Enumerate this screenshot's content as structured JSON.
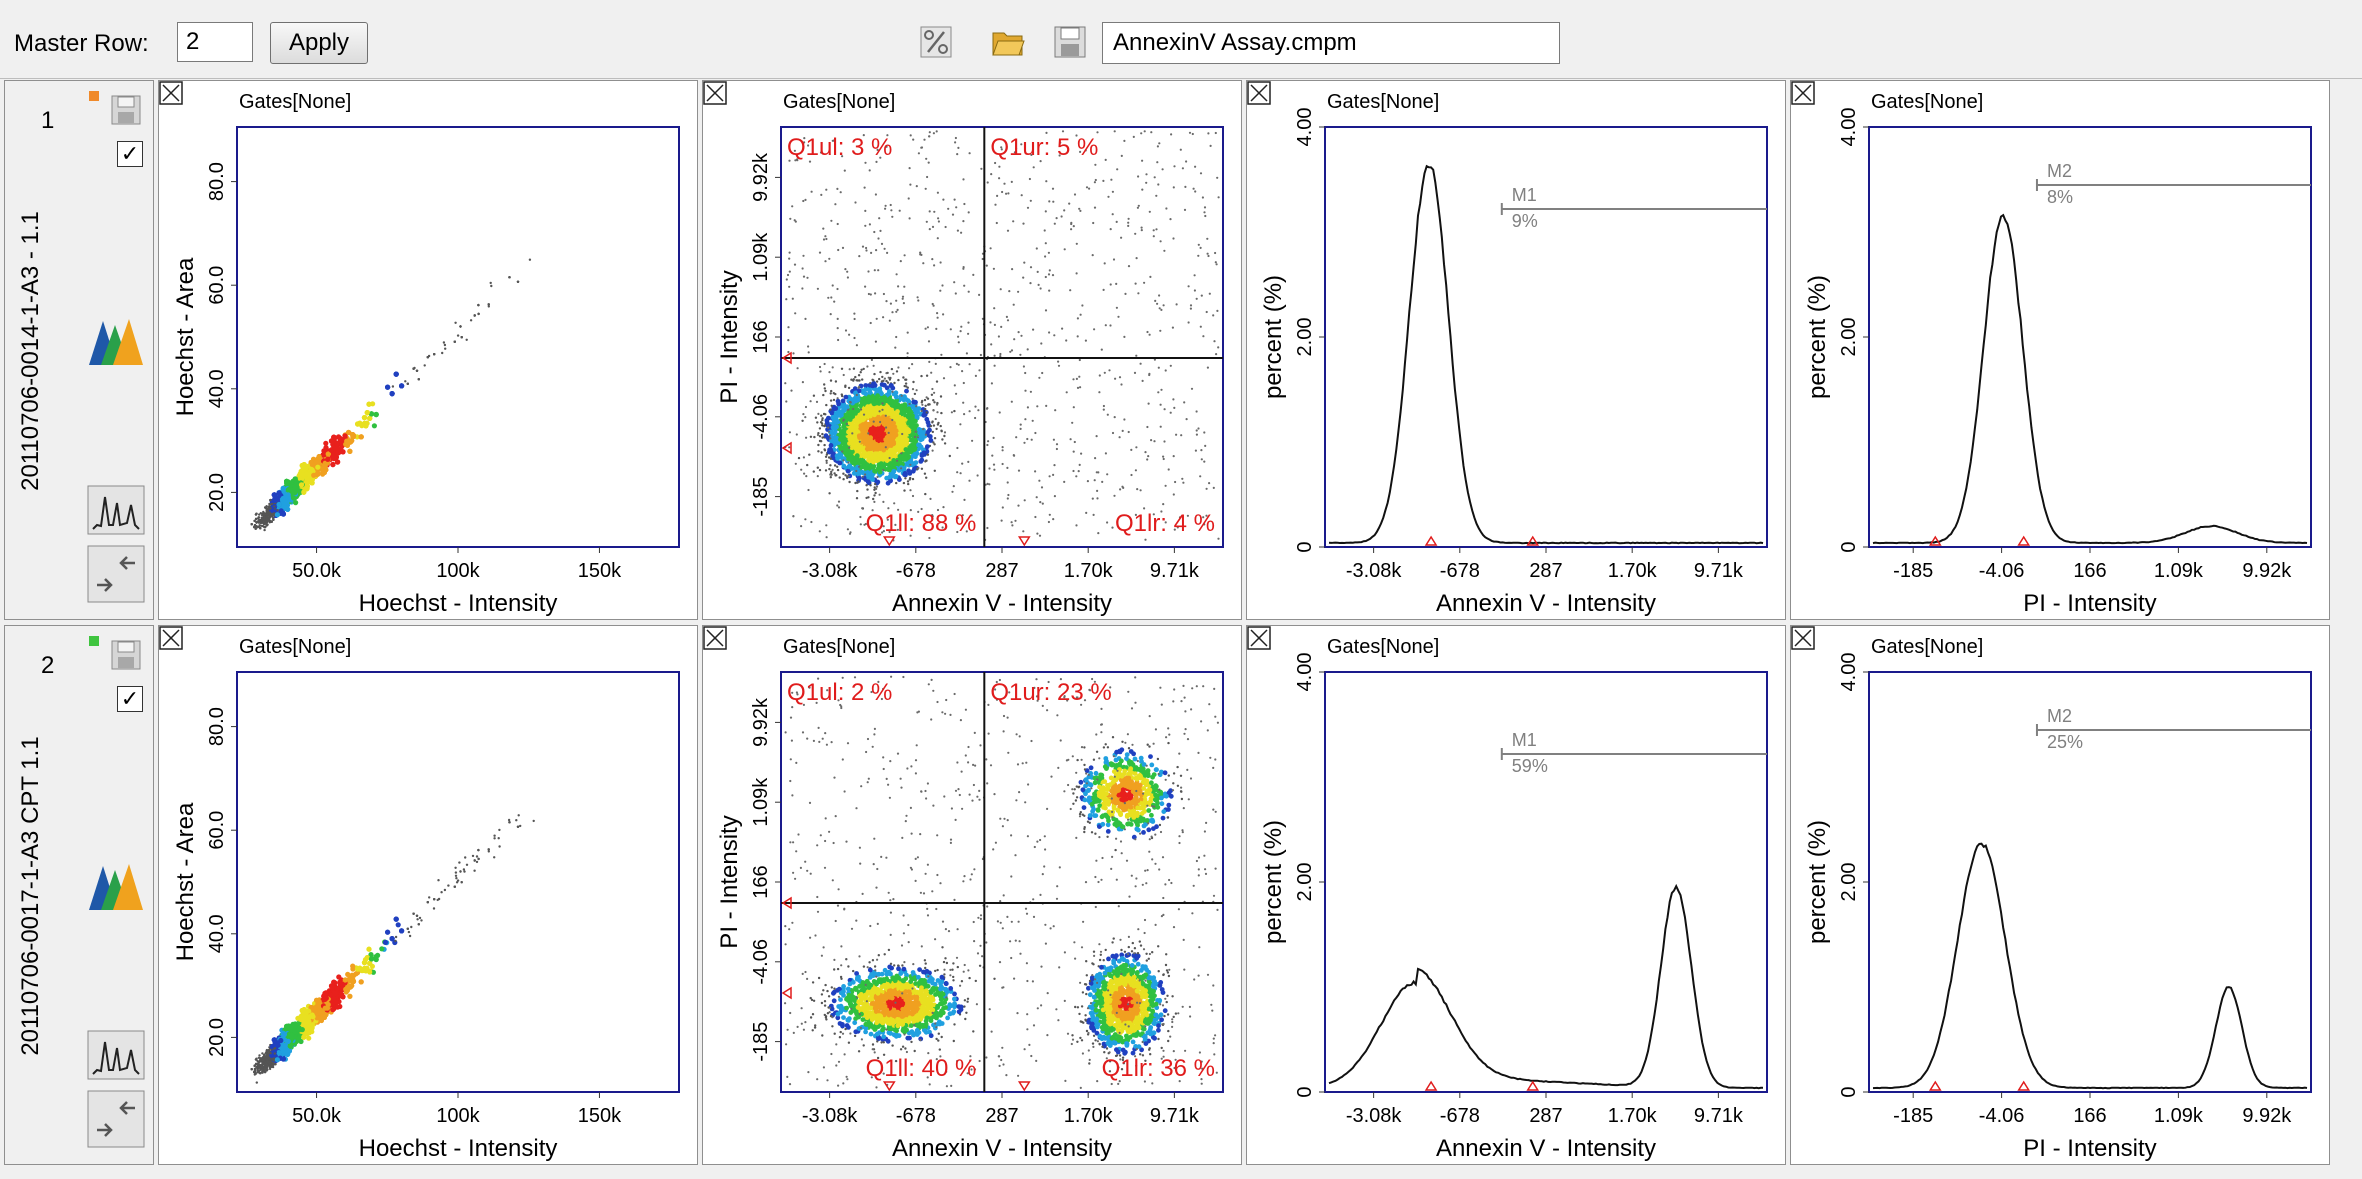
{
  "toolbar": {
    "master_row_label": "Master Row:",
    "master_row_value": "2",
    "apply_label": "Apply",
    "filename": "AnnexinV Assay.cmpm",
    "icons": [
      "percent-icon",
      "folder-open-icon",
      "save-icon"
    ]
  },
  "colors": {
    "row_marker_1": "#f08a2a",
    "row_marker_2": "#3fc43f",
    "gate_red": "#e01c1c",
    "panel_marker_gray": "#909090",
    "panel_marker_green": "#2fc42f"
  },
  "rows": [
    {
      "number": "1",
      "name": "20110706-0014-1-A3 - 1.1",
      "checked": true,
      "panels": [
        {
          "gates": "Gates[None]",
          "xlabel": "Hoechst - Intensity",
          "ylabel": "Hoechst - Area",
          "xticks": [
            "50.0k",
            "100k",
            "150k"
          ],
          "yticks": [
            "20.0",
            "40.0",
            "60.0",
            "80.0"
          ]
        },
        {
          "gates": "Gates[None]",
          "xlabel": "Annexin V - Intensity",
          "ylabel": "PI - Intensity",
          "xticks": [
            "-3.08k",
            "-678",
            "287",
            "1.70k",
            "9.71k"
          ],
          "yticks": [
            "-185",
            "-4.06",
            "166",
            "1.09k",
            "9.92k"
          ],
          "quadrants": {
            "ul": "Q1ul: 3 %",
            "ur": "Q1ur: 5 %",
            "ll": "Q1ll: 88 %",
            "lr": "Q1lr: 4 %"
          }
        },
        {
          "gates": "Gates[None]",
          "xlabel": "Annexin V - Intensity",
          "ylabel": "percent (%)",
          "xticks": [
            "-3.08k",
            "-678",
            "287",
            "1.70k",
            "9.71k"
          ],
          "yticks": [
            "0",
            "2.00",
            "4.00"
          ],
          "marker": {
            "name": "M1",
            "value": "9%"
          }
        },
        {
          "gates": "Gates[None]",
          "xlabel": "PI - Intensity",
          "ylabel": "percent (%)",
          "xticks": [
            "-185",
            "-4.06",
            "166",
            "1.09k",
            "9.92k"
          ],
          "yticks": [
            "0",
            "2.00",
            "4.00"
          ],
          "marker": {
            "name": "M2",
            "value": "8%"
          }
        }
      ]
    },
    {
      "number": "2",
      "name": "20110706-0017-1-A3 CPT 1.1",
      "checked": true,
      "panels": [
        {
          "gates": "Gates[None]",
          "xlabel": "Hoechst - Intensity",
          "ylabel": "Hoechst - Area",
          "xticks": [
            "50.0k",
            "100k",
            "150k"
          ],
          "yticks": [
            "20.0",
            "40.0",
            "60.0",
            "80.0"
          ]
        },
        {
          "gates": "Gates[None]",
          "xlabel": "Annexin V - Intensity",
          "ylabel": "PI - Intensity",
          "xticks": [
            "-3.08k",
            "-678",
            "287",
            "1.70k",
            "9.71k"
          ],
          "yticks": [
            "-185",
            "-4.06",
            "166",
            "1.09k",
            "9.92k"
          ],
          "quadrants": {
            "ul": "Q1ul: 2 %",
            "ur": "Q1ur: 23 %",
            "ll": "Q1ll: 40 %",
            "lr": "Q1lr: 36 %"
          }
        },
        {
          "gates": "Gates[None]",
          "xlabel": "Annexin V - Intensity",
          "ylabel": "percent (%)",
          "xticks": [
            "-3.08k",
            "-678",
            "287",
            "1.70k",
            "9.71k"
          ],
          "yticks": [
            "0",
            "2.00",
            "4.00"
          ],
          "marker": {
            "name": "M1",
            "value": "59%"
          }
        },
        {
          "gates": "Gates[None]",
          "xlabel": "PI - Intensity",
          "ylabel": "percent (%)",
          "xticks": [
            "-185",
            "-4.06",
            "166",
            "1.09k",
            "9.92k"
          ],
          "yticks": [
            "0",
            "2.00",
            "4.00"
          ],
          "marker": {
            "name": "M2",
            "value": "25%"
          }
        }
      ]
    }
  ]
}
